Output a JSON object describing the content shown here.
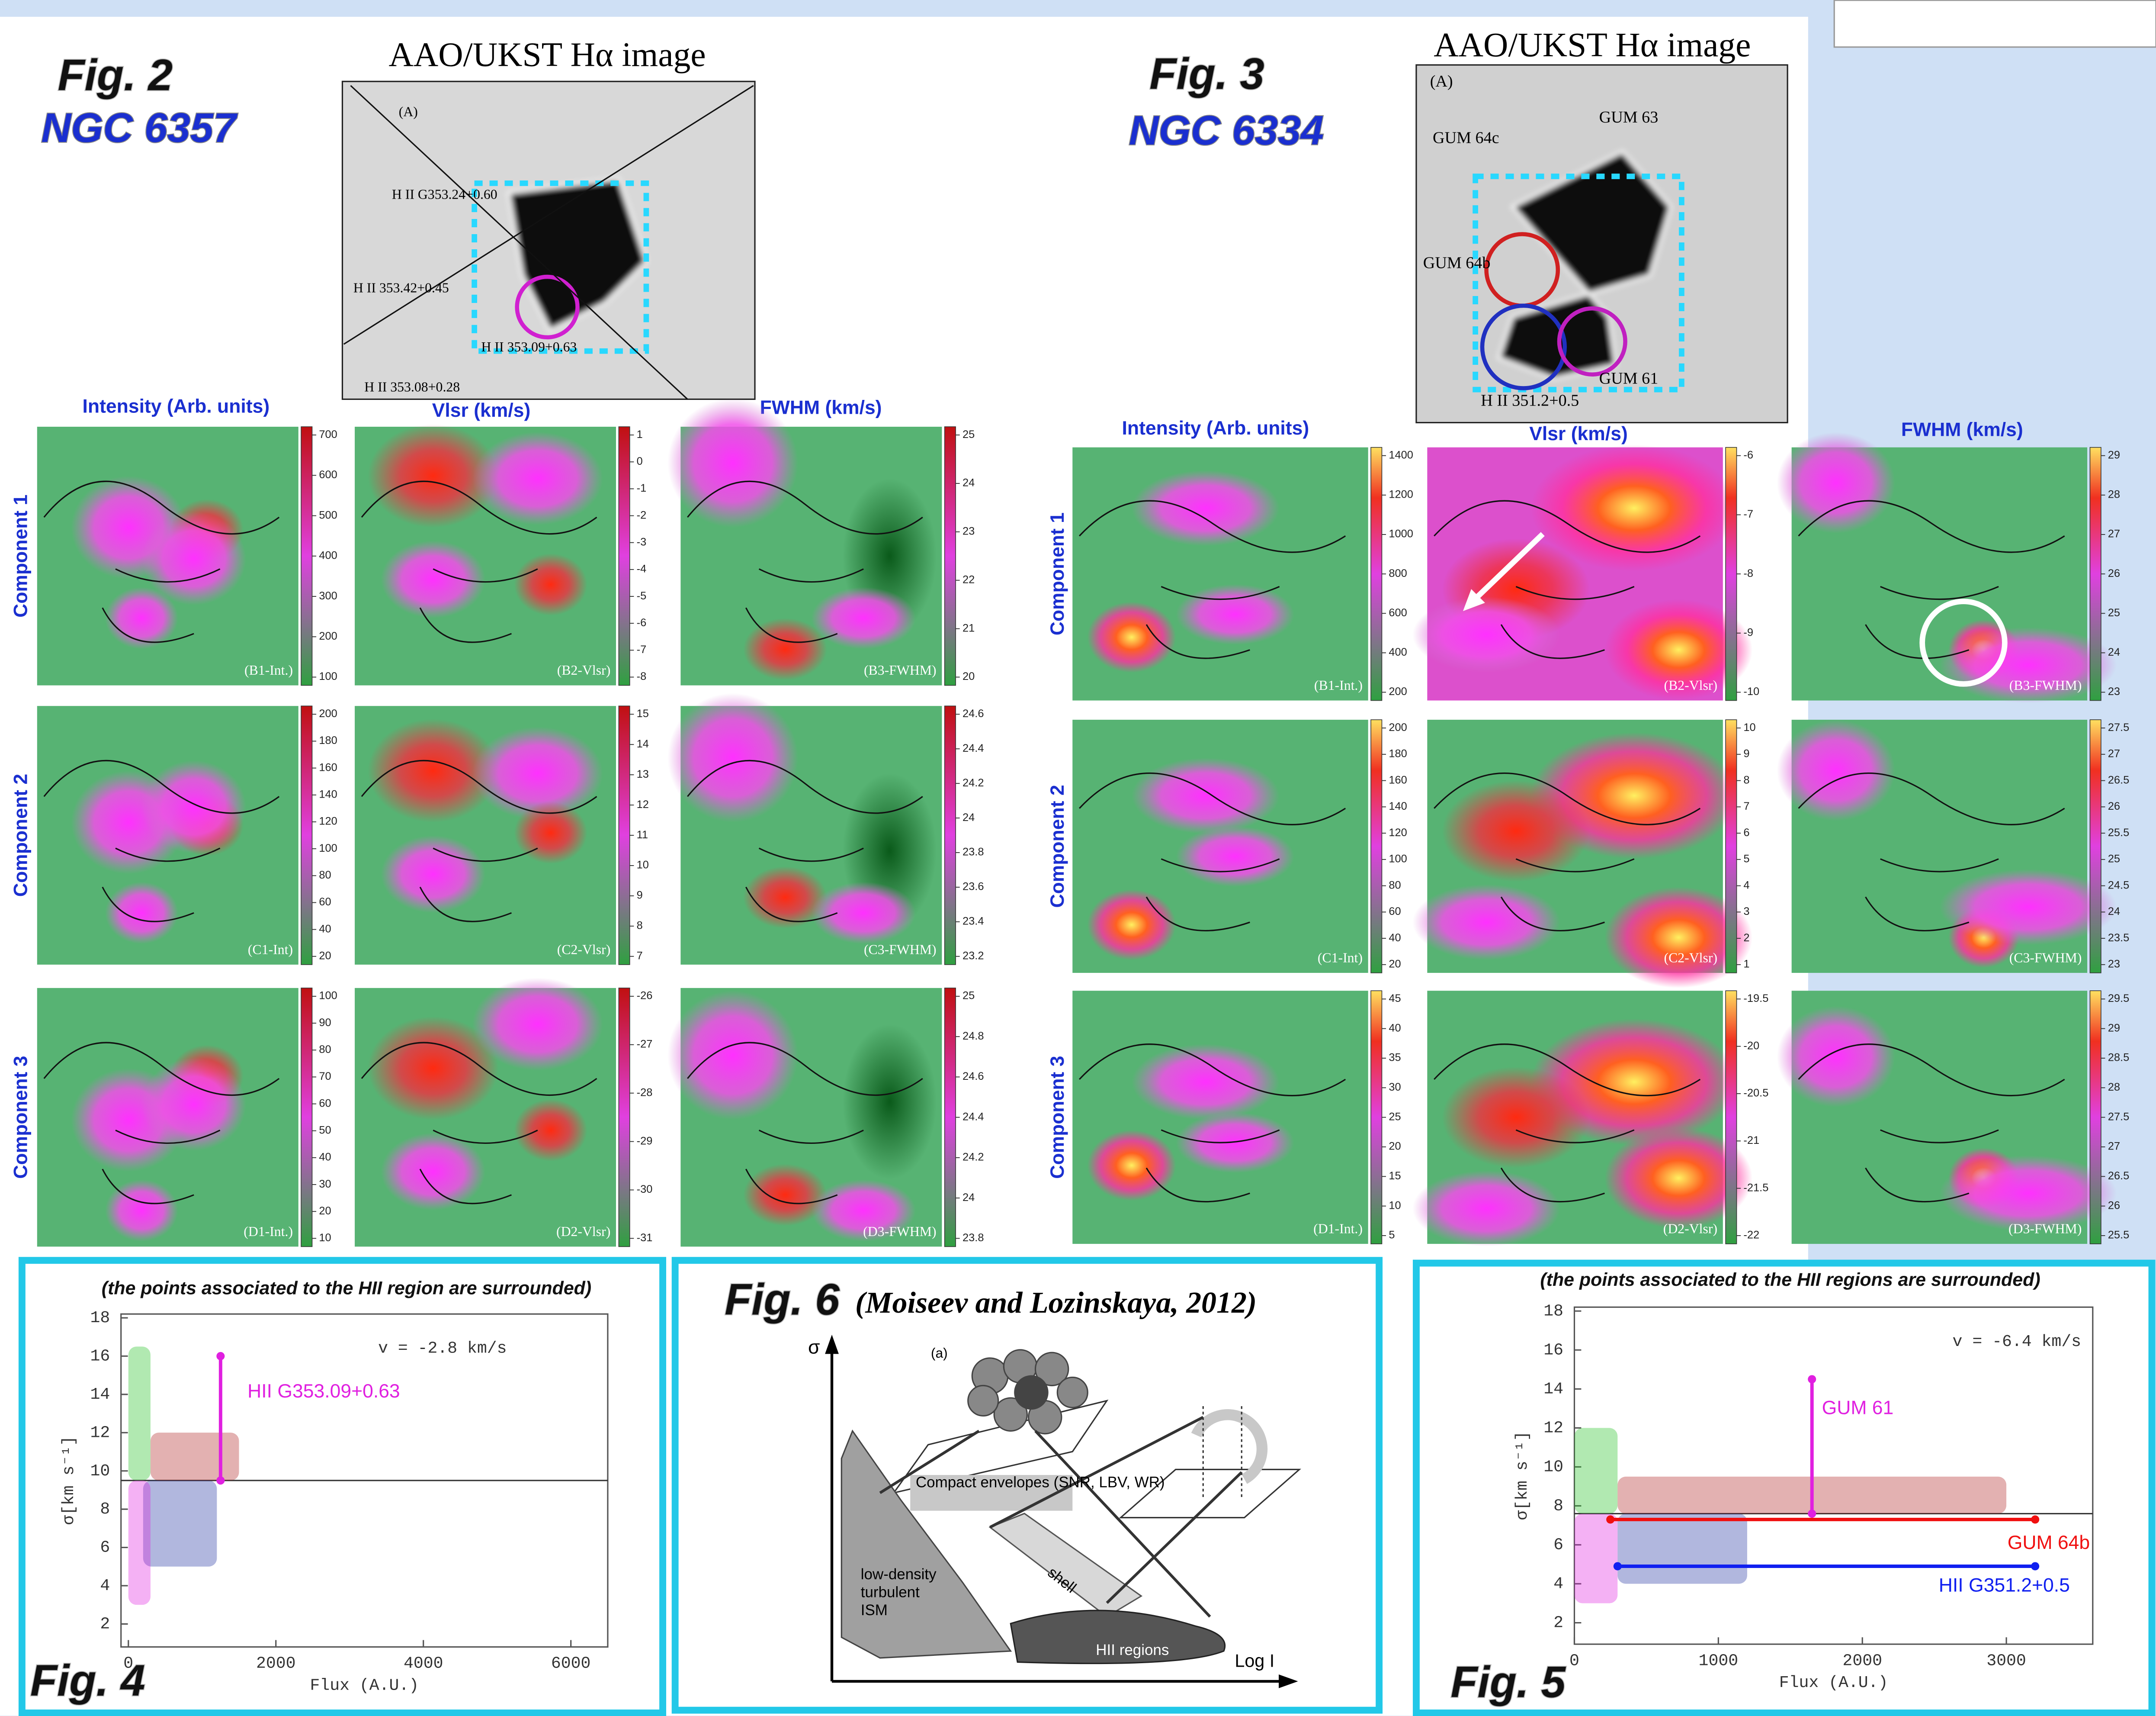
{
  "fig2": {
    "label": "Fig. 2",
    "object": "NGC 6357",
    "image": {
      "title": "AAO/UKST Hα image",
      "labels": [
        "(A)",
        "H II G353.24+0.60",
        "H II 353.42+0.45",
        "H II 353.09+0.63",
        "H II 353.08+0.28"
      ]
    },
    "panel_titles": [
      "Intensity (Arb. units)",
      "Vlsr (km/s)",
      "FWHM (km/s)"
    ],
    "row_labels": [
      "Component 1",
      "Component 2",
      "Component 3"
    ],
    "panels": [
      [
        {
          "tag": "(B1-Int.)",
          "colorbar": [
            700,
            600,
            500,
            400,
            300,
            200,
            100
          ]
        },
        {
          "tag": "(B2-Vlsr)",
          "colorbar": [
            1,
            0,
            -1,
            -2,
            -3,
            -4,
            -5,
            -6,
            -7,
            -8
          ]
        },
        {
          "tag": "(B3-FWHM)",
          "colorbar": [
            25,
            24,
            23,
            22,
            21,
            20
          ]
        }
      ],
      [
        {
          "tag": "(C1-Int)",
          "colorbar": [
            200,
            180,
            160,
            140,
            120,
            100,
            80,
            60,
            40,
            20
          ]
        },
        {
          "tag": "(C2-Vlsr)",
          "colorbar": [
            15,
            14,
            13,
            12,
            11,
            10,
            9,
            8,
            7
          ]
        },
        {
          "tag": "(C3-FWHM)",
          "colorbar": [
            24.6,
            24.4,
            24.2,
            24,
            23.8,
            23.6,
            23.4,
            23.2
          ]
        }
      ],
      [
        {
          "tag": "(D1-Int.)",
          "colorbar": [
            100,
            90,
            80,
            70,
            60,
            50,
            40,
            30,
            20,
            10
          ]
        },
        {
          "tag": "(D2-Vlsr)",
          "colorbar": [
            -26,
            -27,
            -28,
            -29,
            -30,
            -31
          ]
        },
        {
          "tag": "(D3-FWHM)",
          "colorbar": [
            25,
            24.8,
            24.6,
            24.4,
            24.2,
            24,
            23.8
          ]
        }
      ]
    ]
  },
  "fig3": {
    "label": "Fig. 3",
    "object": "NGC 6334",
    "image": {
      "title": "AAO/UKST Hα image",
      "labels": [
        "(A)",
        "GUM 63",
        "GUM 64c",
        "GUM 64b",
        "GUM 61",
        "H II 351.2+0.5"
      ]
    },
    "panel_titles": [
      "Intensity (Arb. units)",
      "Vlsr (km/s)",
      "FWHM (km/s)"
    ],
    "row_labels": [
      "Component 1",
      "Component 2",
      "Component 3"
    ],
    "panels": [
      [
        {
          "tag": "(B1-Int.)",
          "colorbar": [
            1400,
            1200,
            1000,
            800,
            600,
            400,
            200
          ]
        },
        {
          "tag": "(B2-Vlsr)",
          "colorbar": [
            -6,
            -7,
            -8,
            -9,
            -10
          ]
        },
        {
          "tag": "(B3-FWHM)",
          "colorbar": [
            29,
            28,
            27,
            26,
            25,
            24,
            23
          ]
        }
      ],
      [
        {
          "tag": "(C1-Int)",
          "colorbar": [
            200,
            180,
            160,
            140,
            120,
            100,
            80,
            60,
            40,
            20
          ]
        },
        {
          "tag": "(C2-Vlsr)",
          "colorbar": [
            10,
            9,
            8,
            7,
            6,
            5,
            4,
            3,
            2,
            1
          ]
        },
        {
          "tag": "(C3-FWHM)",
          "colorbar": [
            27.5,
            27,
            26.5,
            26,
            25.5,
            25,
            24.5,
            24,
            23.5,
            23
          ]
        }
      ],
      [
        {
          "tag": "(D1-Int.)",
          "colorbar": [
            45,
            40,
            35,
            30,
            25,
            20,
            15,
            10,
            5
          ]
        },
        {
          "tag": "(D2-Vlsr)",
          "colorbar": [
            -19.5,
            -20,
            -20.5,
            -21,
            -21.5,
            -22
          ]
        },
        {
          "tag": "(D3-FWHM)",
          "colorbar": [
            29.5,
            29,
            28.5,
            28,
            27.5,
            27,
            26.5,
            26,
            25.5
          ]
        }
      ]
    ]
  },
  "fig4": {
    "label": "Fig. 4",
    "caption": "(the points associated to the HII region are surrounded)",
    "xlabel": "Flux (A.U.)",
    "ylabel": "σ[km s⁻¹]",
    "note": "v = -2.8 km/s",
    "annotation": "HII G353.09+0.63",
    "xlim": [
      -100,
      6500
    ],
    "ylim": [
      0.8,
      18.2
    ],
    "xticks": [
      0,
      2000,
      4000,
      6000
    ],
    "yticks": [
      2,
      4,
      6,
      8,
      10,
      12,
      14,
      16,
      18
    ],
    "threshold": 9.5
  },
  "fig5": {
    "label": "Fig. 5",
    "caption": "(the points associated to the HII regions are surrounded)",
    "xlabel": "Flux (A.U.)",
    "ylabel": "σ[km s⁻¹]",
    "note": "v = -6.4 km/s",
    "annotations": [
      "GUM 61",
      "GUM 64b",
      "HII G351.2+0.5"
    ],
    "xlim": [
      0,
      3600
    ],
    "ylim": [
      0.9,
      18.2
    ],
    "xticks": [
      0,
      1000,
      2000,
      3000
    ],
    "yticks": [
      2,
      4,
      6,
      8,
      10,
      12,
      14,
      16,
      18
    ],
    "threshold": 7.6
  },
  "fig6": {
    "label": "Fig. 6",
    "citation": "(Moiseev and Lozinskaya, 2012)",
    "y_axis": "σ",
    "x_axis": "Log I",
    "panel": "(a)",
    "labels": [
      "Compact envelopes (SNR, LBV, WR)",
      "low-density turbulent ISM",
      "shell",
      "HII regions"
    ]
  }
}
